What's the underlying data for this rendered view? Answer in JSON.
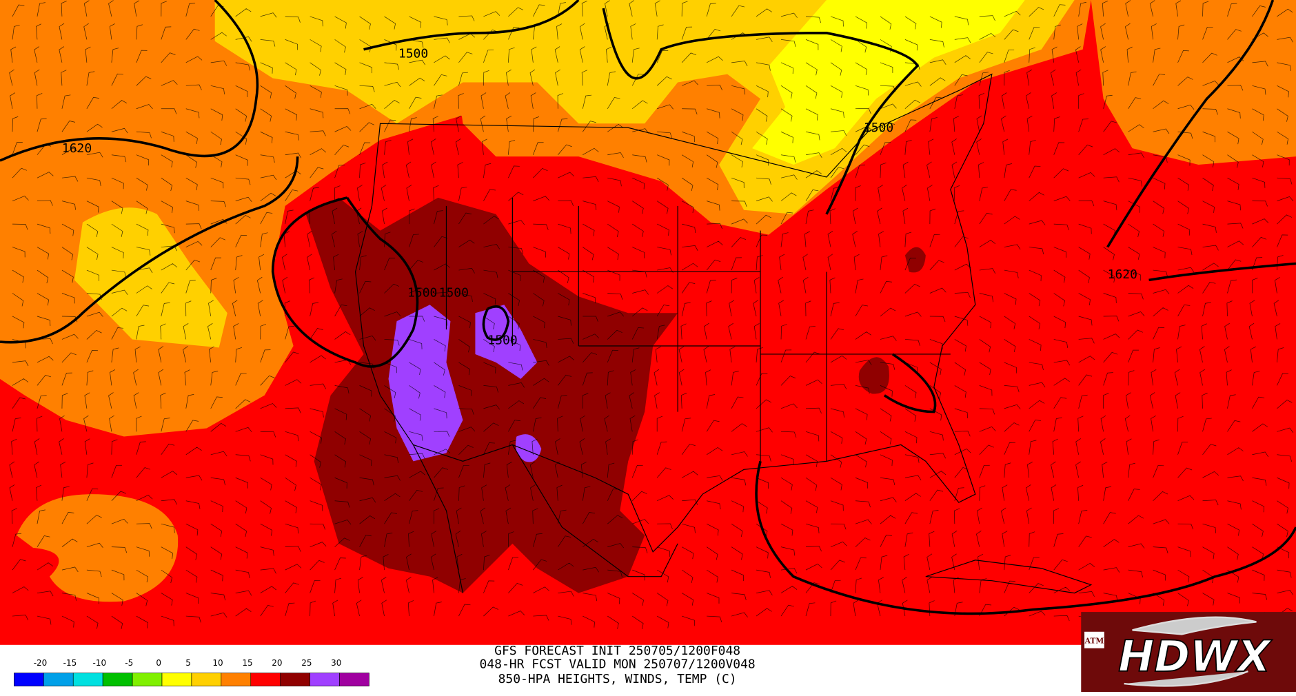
{
  "header": {
    "lines": [
      "GFS FORECAST INIT 250705/1200F048",
      "048-HR FCST VALID MON 250707/1200V048",
      "850-HPA HEIGHTS, WINDS, TEMP (C)"
    ]
  },
  "legend": {
    "ticks": [
      -20,
      -15,
      -10,
      -5,
      0,
      5,
      10,
      15,
      20,
      25,
      30
    ],
    "colors": [
      "#0000ff",
      "#00a0e8",
      "#00e0e0",
      "#00c000",
      "#80f000",
      "#ffff00",
      "#ffd000",
      "#ff8000",
      "#ff0000",
      "#900000",
      "#a040ff",
      "#a000a0"
    ]
  },
  "contour_labels": [
    "1620",
    "1500",
    "1500",
    "1500",
    "1500",
    "1500",
    "1620"
  ],
  "logo": {
    "text": "HDWX",
    "badge": "ATM"
  }
}
